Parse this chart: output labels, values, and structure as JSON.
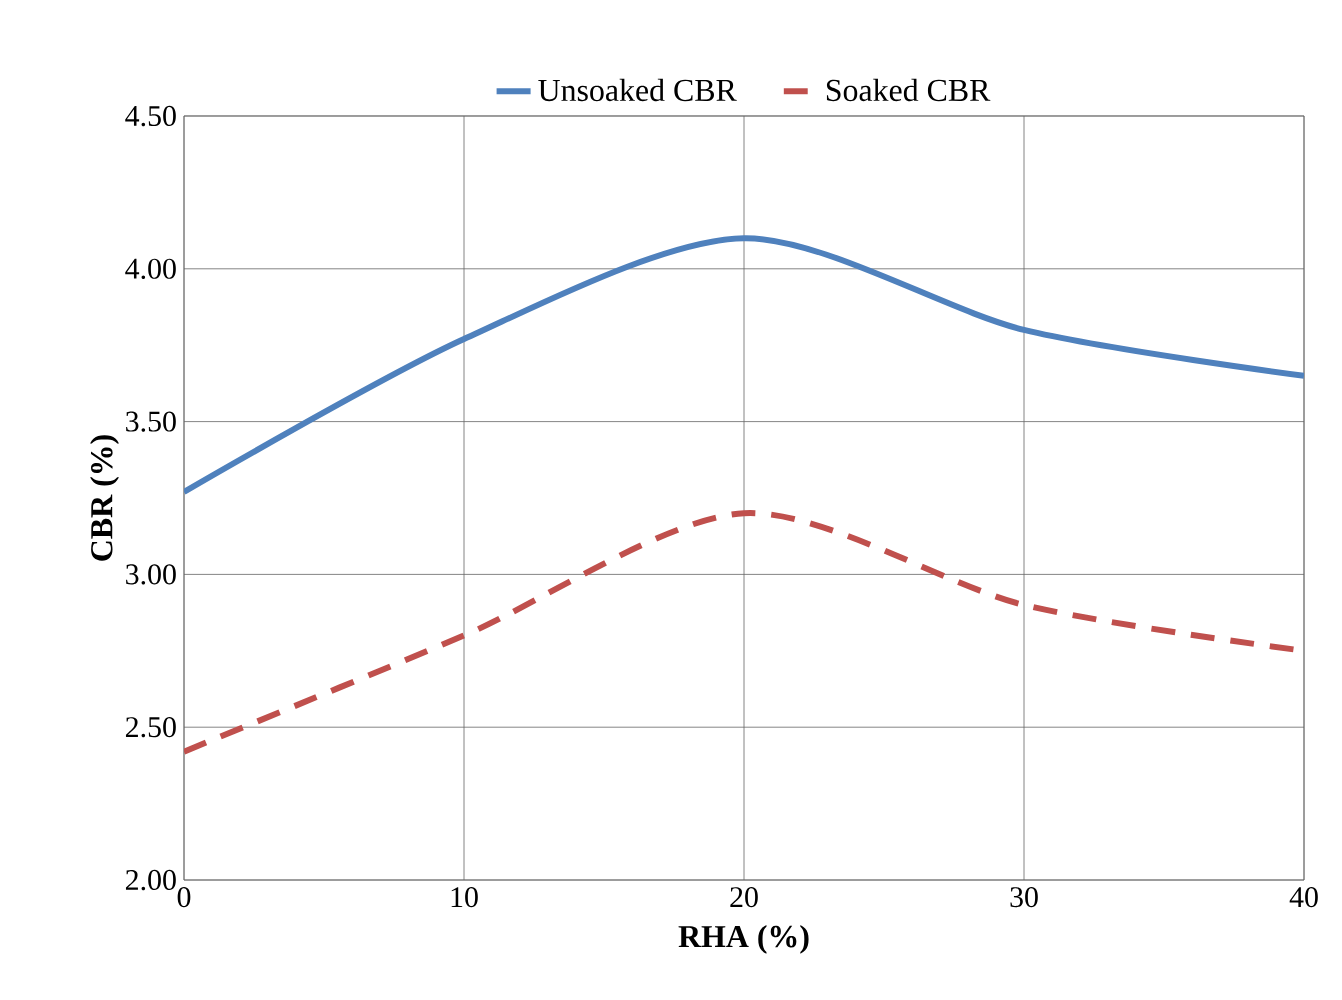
{
  "chart_data": {
    "type": "line",
    "xlabel": "RHA (%)",
    "ylabel": "CBR (%)",
    "x": [
      0,
      10,
      20,
      30,
      40
    ],
    "series": [
      {
        "name": "Unsoaked CBR",
        "color": "#4f81bd",
        "line_style": "solid",
        "values": [
          3.27,
          3.77,
          4.1,
          3.8,
          3.65
        ]
      },
      {
        "name": "Soaked CBR",
        "color": "#c0504d",
        "line_style": "dashed",
        "values": [
          2.42,
          2.8,
          3.2,
          2.9,
          2.75
        ]
      }
    ],
    "xlim": [
      0,
      40
    ],
    "xticks": [
      0,
      10,
      20,
      30,
      40
    ],
    "ylim": [
      2.0,
      4.5
    ],
    "yticks": [
      {
        "value": 2.0,
        "label": "2.00"
      },
      {
        "value": 2.5,
        "label": "2.50"
      },
      {
        "value": 3.0,
        "label": "3.00"
      },
      {
        "value": 3.5,
        "label": "3.50"
      },
      {
        "value": 4.0,
        "label": "4.00"
      },
      {
        "value": 4.5,
        "label": "4.50"
      }
    ],
    "grid": true,
    "legend": "top"
  }
}
